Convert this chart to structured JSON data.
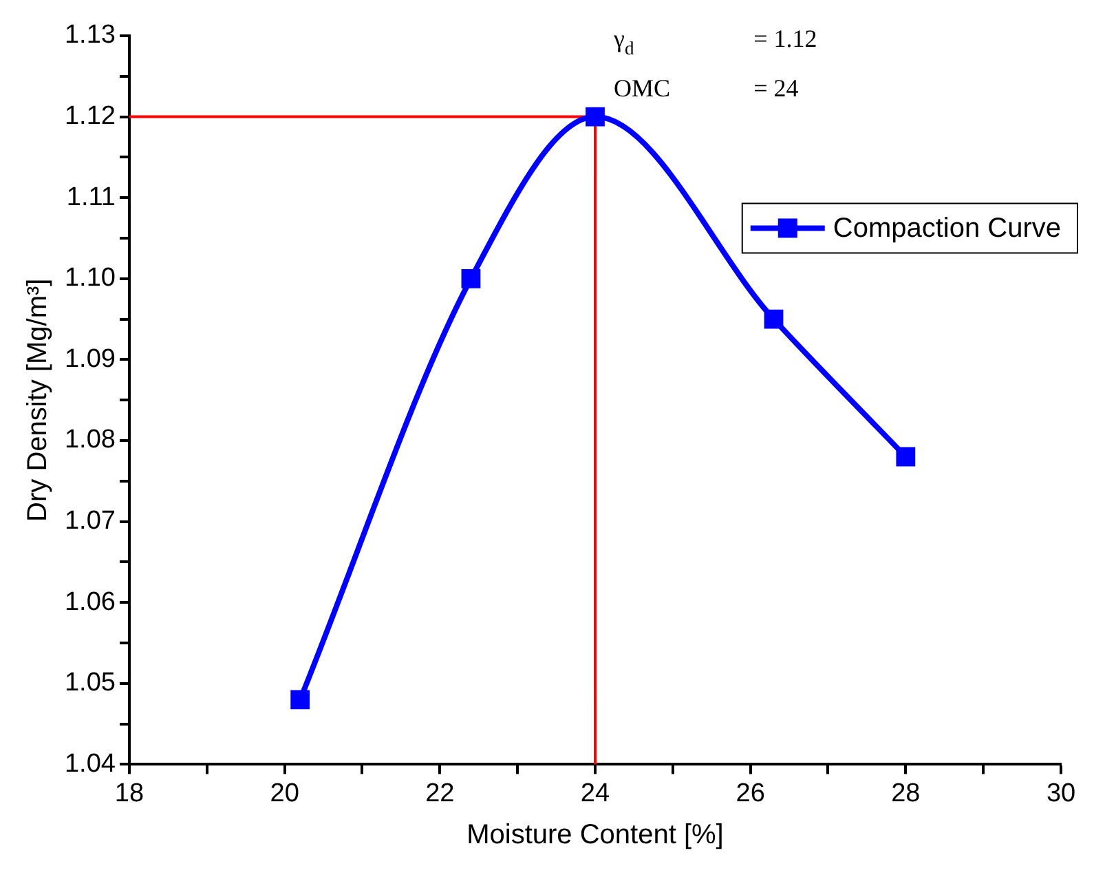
{
  "chart_data": {
    "type": "line",
    "xlabel": "Moisture Content [%]",
    "ylabel": "Dry Density [Mg/m³]",
    "xlim": [
      18,
      30
    ],
    "xticks": [
      18,
      {
        "value": 19,
        "label": null
      },
      20,
      {
        "value": 21,
        "label": null
      },
      22,
      {
        "value": 23,
        "label": null
      },
      24,
      {
        "value": 25,
        "label": null
      },
      26,
      {
        "value": 27,
        "label": null
      },
      28,
      {
        "value": 29,
        "label": null
      },
      30
    ],
    "ylim": [
      1.04,
      1.13
    ],
    "yticks": [
      {
        "value": 1.04,
        "label": "1.04"
      },
      {
        "value": 1.045,
        "label": null
      },
      {
        "value": 1.05,
        "label": "1.05"
      },
      {
        "value": 1.055,
        "label": null
      },
      {
        "value": 1.06,
        "label": "1.06"
      },
      {
        "value": 1.065,
        "label": null
      },
      {
        "value": 1.07,
        "label": "1.07"
      },
      {
        "value": 1.075,
        "label": null
      },
      {
        "value": 1.08,
        "label": "1.08"
      },
      {
        "value": 1.085,
        "label": null
      },
      {
        "value": 1.09,
        "label": "1.09"
      },
      {
        "value": 1.095,
        "label": null
      },
      {
        "value": 1.1,
        "label": "1.10"
      },
      {
        "value": 1.105,
        "label": null
      },
      {
        "value": 1.11,
        "label": "1.11"
      },
      {
        "value": 1.115,
        "label": null
      },
      {
        "value": 1.12,
        "label": "1.12"
      },
      {
        "value": 1.125,
        "label": null
      },
      {
        "value": 1.13,
        "label": "1.13"
      }
    ],
    "grid": false,
    "legend": "right",
    "series": [
      {
        "name": "Compaction Curve",
        "color": "#0000ff",
        "x": [
          20.2,
          22.4,
          24,
          26.3,
          28
        ],
        "values": [
          1.048,
          1.1,
          1.12,
          1.095,
          1.078
        ],
        "marker": "square"
      },
      {
        "color": "#ff0000",
        "x": [
          18,
          24,
          24
        ],
        "values": [
          1.12,
          1.12,
          1.04
        ],
        "marker": "none"
      }
    ],
    "annotations": [
      "γ$_{d}$",
      "= 1.12",
      "OMC",
      "= 24"
    ]
  }
}
